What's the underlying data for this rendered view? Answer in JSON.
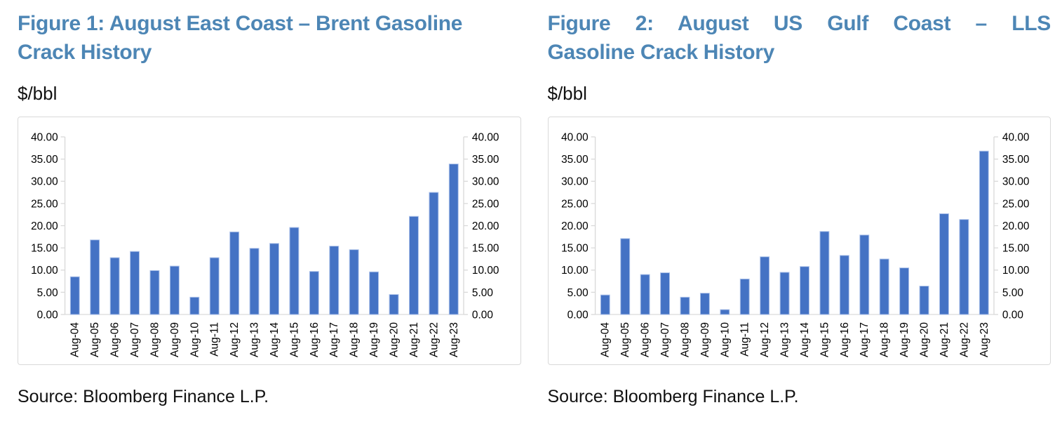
{
  "colors": {
    "title_blue": "#4d86b5",
    "bar_blue": "#4472c4",
    "bar_edge": "#aec3ea",
    "axis_gray": "#d9d9d9",
    "label_black": "#000000"
  },
  "figures": [
    {
      "title_lines": [
        "Figure 1: August East Coast – Brent Gasoline",
        "Crack History"
      ],
      "unit_label": "$/bbl",
      "source": "Source: Bloomberg Finance L.P."
    },
    {
      "title_lines": [
        "Figure 2: August US Gulf Coast – LLS",
        "Gasoline Crack History"
      ],
      "unit_label": "$/bbl",
      "source": "Source: Bloomberg Finance L.P."
    }
  ],
  "chart_data": [
    {
      "type": "bar",
      "title": "Figure 1: August East Coast – Brent Gasoline Crack History",
      "ylabel": "$/bbl",
      "categories": [
        "Aug-04",
        "Aug-05",
        "Aug-06",
        "Aug-07",
        "Aug-08",
        "Aug-09",
        "Aug-10",
        "Aug-11",
        "Aug-12",
        "Aug-13",
        "Aug-14",
        "Aug-15",
        "Aug-16",
        "Aug-17",
        "Aug-18",
        "Aug-19",
        "Aug-20",
        "Aug-21",
        "Aug-22",
        "Aug-23"
      ],
      "values": [
        8.5,
        16.8,
        12.8,
        14.2,
        9.9,
        10.9,
        3.9,
        12.8,
        18.6,
        14.9,
        16.0,
        19.6,
        9.7,
        15.4,
        14.6,
        9.6,
        4.5,
        22.1,
        27.5,
        33.9
      ],
      "ylim": [
        0,
        40
      ],
      "ytick_step": 5,
      "ytick_labels": [
        "0.00",
        "5.00",
        "10.00",
        "15.00",
        "20.00",
        "25.00",
        "30.00",
        "35.00",
        "40.00"
      ],
      "axes": "dual (left and right)",
      "grid": false,
      "legend": "none"
    },
    {
      "type": "bar",
      "title": "Figure 2: August US Gulf Coast – LLS Gasoline Crack History",
      "ylabel": "$/bbl",
      "categories": [
        "Aug-04",
        "Aug-05",
        "Aug-06",
        "Aug-07",
        "Aug-08",
        "Aug-09",
        "Aug-10",
        "Aug-11",
        "Aug-12",
        "Aug-13",
        "Aug-14",
        "Aug-15",
        "Aug-16",
        "Aug-17",
        "Aug-18",
        "Aug-19",
        "Aug-20",
        "Aug-21",
        "Aug-22",
        "Aug-23"
      ],
      "values": [
        4.4,
        17.1,
        9.0,
        9.4,
        3.9,
        4.8,
        1.1,
        8.0,
        13.0,
        9.5,
        10.8,
        18.7,
        13.3,
        17.9,
        12.5,
        10.5,
        6.4,
        22.7,
        21.4,
        36.8
      ],
      "ylim": [
        0,
        40
      ],
      "ytick_step": 5,
      "ytick_labels": [
        "0.00",
        "5.00",
        "10.00",
        "15.00",
        "20.00",
        "25.00",
        "30.00",
        "35.00",
        "40.00"
      ],
      "axes": "dual (left and right)",
      "grid": false,
      "legend": "none"
    }
  ]
}
